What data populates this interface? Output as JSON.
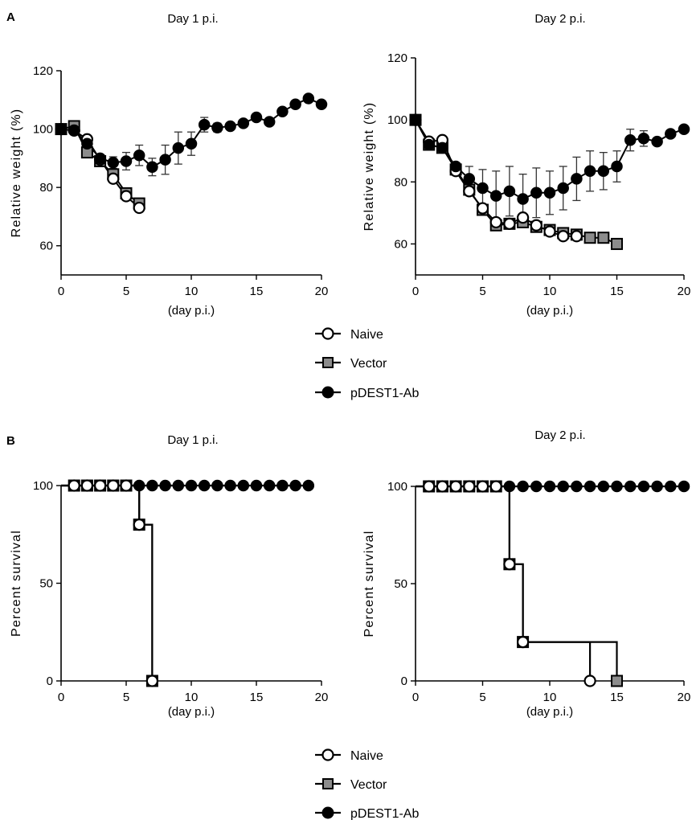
{
  "panel_labels": [
    "A",
    "B"
  ],
  "legend": {
    "naive": "Naive",
    "vector": "Vector",
    "pdest": "pDEST1-Ab"
  },
  "colors": {
    "naive_fill": "#ffffff",
    "vector_fill": "#8c8c8c",
    "pdest_fill": "#000000",
    "line": "#000000",
    "errorbar": "#333333"
  },
  "chart_data": [
    {
      "id": "A1",
      "type": "line",
      "title": "Day 1    p.i.",
      "xlabel": "(day p.i.)",
      "ylabel": "Relative weight (%)",
      "xlim": [
        0,
        20
      ],
      "ylim": [
        50,
        120
      ],
      "xticks": [
        0,
        5,
        10,
        15,
        20
      ],
      "yticks": [
        60,
        80,
        100,
        120
      ],
      "series": [
        {
          "name": "Naive",
          "marker": "circle-open",
          "x": [
            0,
            1,
            2,
            3,
            4,
            5,
            6
          ],
          "y": [
            100,
            99.5,
            96.5,
            89.5,
            83,
            77,
            73
          ]
        },
        {
          "name": "Vector",
          "marker": "square-gray",
          "x": [
            0,
            1,
            2,
            3,
            4,
            5,
            6
          ],
          "y": [
            100,
            101,
            92,
            89,
            84.5,
            78,
            74.5
          ]
        },
        {
          "name": "pDEST1-Ab",
          "marker": "circle-filled",
          "x": [
            0,
            1,
            2,
            3,
            4,
            5,
            6,
            7,
            8,
            9,
            10,
            11,
            12,
            13,
            14,
            15,
            16,
            17,
            18,
            19,
            20
          ],
          "y": [
            100,
            99.5,
            95,
            90,
            88.5,
            89,
            91,
            87,
            89.5,
            93.5,
            95,
            101.5,
            100.5,
            101,
            102,
            104,
            102.5,
            106,
            108.5,
            110.5,
            108.5
          ],
          "err": [
            0,
            0,
            0,
            0,
            2,
            3,
            3.5,
            3,
            5,
            5.5,
            4,
            2.5,
            1.5,
            0,
            0,
            0,
            0,
            0,
            0,
            0,
            0
          ]
        }
      ]
    },
    {
      "id": "A2",
      "type": "line",
      "title": "Day 2    p.i.",
      "xlabel": "(day p.i.)",
      "ylabel": "Relative weight (%)",
      "xlim": [
        0,
        20
      ],
      "ylim": [
        50,
        120
      ],
      "xticks": [
        0,
        5,
        10,
        15,
        20
      ],
      "yticks": [
        60,
        80,
        100,
        120
      ],
      "series": [
        {
          "name": "Naive",
          "marker": "circle-open",
          "x": [
            0,
            1,
            2,
            3,
            4,
            5,
            6,
            7,
            8,
            9,
            10,
            11,
            12
          ],
          "y": [
            100,
            93,
            93.5,
            83.5,
            77,
            71.5,
            67,
            66.5,
            68.5,
            66,
            64,
            62.5,
            62.5
          ]
        },
        {
          "name": "Vector",
          "marker": "square-gray",
          "x": [
            0,
            1,
            2,
            3,
            4,
            5,
            6,
            7,
            8,
            9,
            10,
            11,
            12,
            13,
            14,
            15
          ],
          "y": [
            100,
            92,
            91,
            84,
            77.5,
            71,
            66,
            66.5,
            67,
            65.5,
            64.5,
            63.5,
            63,
            62,
            62,
            60
          ]
        },
        {
          "name": "pDEST1-Ab",
          "marker": "circle-filled",
          "x": [
            0,
            1,
            2,
            3,
            4,
            5,
            6,
            7,
            8,
            9,
            10,
            11,
            12,
            13,
            14,
            15,
            16,
            17,
            18,
            19,
            20
          ],
          "y": [
            100,
            92,
            91,
            85,
            81,
            78,
            75.5,
            77,
            74.5,
            76.5,
            76.5,
            78,
            81,
            83.5,
            83.5,
            85,
            93.5,
            94,
            93,
            95.5,
            97
          ],
          "err": [
            0,
            0,
            0,
            0,
            4,
            6,
            8,
            8,
            8,
            8,
            7,
            7,
            7,
            6.5,
            6,
            5,
            3.5,
            2.5,
            0,
            0,
            0
          ]
        }
      ]
    },
    {
      "id": "B1",
      "type": "line",
      "title": "Day 1    p.i.",
      "xlabel": "(day p.i.)",
      "ylabel": "Percent survival",
      "xlim": [
        0,
        20
      ],
      "ylim": [
        0,
        100
      ],
      "xticks": [
        0,
        5,
        10,
        15,
        20
      ],
      "yticks": [
        0,
        50,
        100
      ],
      "series": [
        {
          "name": "Naive",
          "marker": "circle-open",
          "x": [
            1,
            2,
            3,
            4,
            5,
            6,
            7
          ],
          "y": [
            100,
            100,
            100,
            100,
            100,
            80,
            0
          ],
          "step": [
            [
              0,
              100
            ],
            [
              6,
              100
            ],
            [
              6,
              80
            ],
            [
              7,
              80
            ],
            [
              7,
              0
            ]
          ]
        },
        {
          "name": "Vector",
          "marker": "square-gray",
          "x": [
            1,
            2,
            3,
            4,
            5,
            6,
            7
          ],
          "y": [
            100,
            100,
            100,
            100,
            100,
            80,
            0
          ],
          "step": [
            [
              0,
              100
            ],
            [
              6,
              100
            ],
            [
              6,
              80
            ],
            [
              7,
              80
            ],
            [
              7,
              0
            ]
          ]
        },
        {
          "name": "pDEST1-Ab",
          "marker": "circle-filled",
          "x": [
            1,
            2,
            3,
            4,
            5,
            6,
            7,
            8,
            9,
            10,
            11,
            12,
            13,
            14,
            15,
            16,
            17,
            18,
            19
          ],
          "y": [
            100,
            100,
            100,
            100,
            100,
            100,
            100,
            100,
            100,
            100,
            100,
            100,
            100,
            100,
            100,
            100,
            100,
            100,
            100
          ],
          "step": [
            [
              0,
              100
            ],
            [
              19,
              100
            ]
          ]
        }
      ]
    },
    {
      "id": "B2",
      "type": "line",
      "title": "Day 2    p.i.",
      "xlabel": "(day p.i.)",
      "ylabel": "Percent survival",
      "xlim": [
        0,
        20
      ],
      "ylim": [
        0,
        100
      ],
      "xticks": [
        0,
        5,
        10,
        15,
        20
      ],
      "yticks": [
        0,
        50,
        100
      ],
      "series": [
        {
          "name": "Naive",
          "marker": "circle-open",
          "x": [
            1,
            2,
            3,
            4,
            5,
            6,
            7,
            8,
            13
          ],
          "y": [
            100,
            100,
            100,
            100,
            100,
            100,
            60,
            20,
            0
          ],
          "step": [
            [
              0,
              100
            ],
            [
              7,
              100
            ],
            [
              7,
              60
            ],
            [
              8,
              60
            ],
            [
              8,
              20
            ],
            [
              13,
              20
            ],
            [
              13,
              0
            ]
          ]
        },
        {
          "name": "Vector",
          "marker": "square-gray",
          "x": [
            1,
            2,
            3,
            4,
            5,
            6,
            7,
            8,
            15
          ],
          "y": [
            100,
            100,
            100,
            100,
            100,
            100,
            60,
            20,
            0
          ],
          "step": [
            [
              0,
              100
            ],
            [
              7,
              100
            ],
            [
              7,
              60
            ],
            [
              8,
              60
            ],
            [
              8,
              20
            ],
            [
              15,
              20
            ],
            [
              15,
              0
            ]
          ]
        },
        {
          "name": "pDEST1-Ab",
          "marker": "circle-filled",
          "x": [
            1,
            2,
            3,
            4,
            5,
            6,
            7,
            8,
            9,
            10,
            11,
            12,
            13,
            14,
            15,
            16,
            17,
            18,
            19,
            20
          ],
          "y": [
            100,
            100,
            100,
            100,
            100,
            100,
            100,
            100,
            100,
            100,
            100,
            100,
            100,
            100,
            100,
            100,
            100,
            100,
            100,
            100
          ],
          "step": [
            [
              0,
              100
            ],
            [
              20,
              100
            ]
          ]
        }
      ]
    }
  ]
}
